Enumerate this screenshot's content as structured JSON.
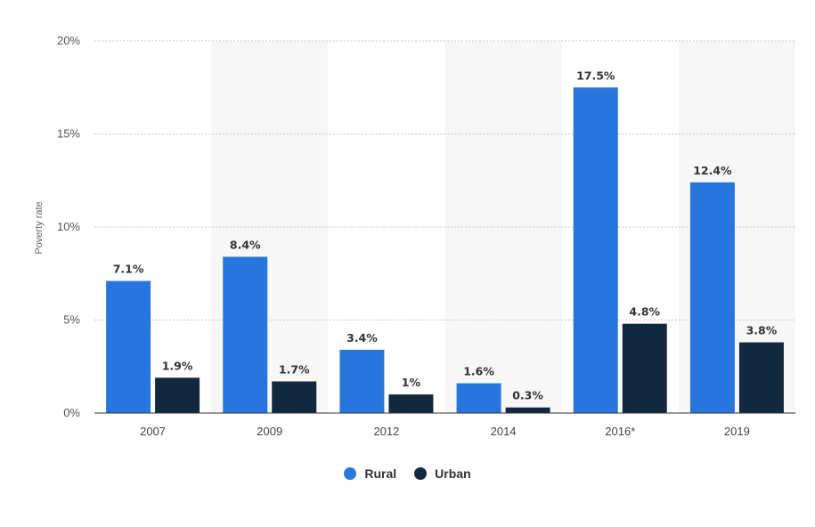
{
  "chart_data": {
    "type": "bar",
    "categories": [
      "2007",
      "2009",
      "2012",
      "2014",
      "2016*",
      "2019"
    ],
    "series": [
      {
        "name": "Rural",
        "values": [
          7.1,
          8.4,
          3.4,
          1.6,
          17.5,
          12.4
        ],
        "labels": [
          "7.1%",
          "8.4%",
          "3.4%",
          "1.6%",
          "17.5%",
          "12.4%"
        ],
        "color": "#2876dd"
      },
      {
        "name": "Urban",
        "values": [
          1.9,
          1.7,
          1,
          0.3,
          4.8,
          3.8
        ],
        "labels": [
          "1.9%",
          "1.7%",
          "1%",
          "0.3%",
          "4.8%",
          "3.8%"
        ],
        "color": "#12283f"
      }
    ],
    "ylabel": "Poverty rate",
    "ylim": [
      0,
      20
    ],
    "yticks": [
      "0%",
      "5%",
      "10%",
      "15%",
      "20%"
    ],
    "grid": true,
    "legend_position": "bottom-center"
  }
}
